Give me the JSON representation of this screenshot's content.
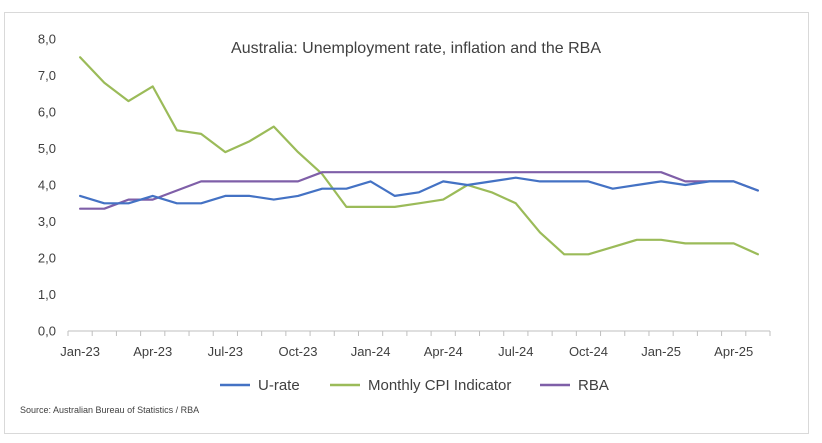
{
  "chart_data": {
    "type": "line",
    "title": "Australia: Unemployment rate, inflation and the RBA",
    "source": "Source: Australian Bureau of Statistics / RBA",
    "xlabel": "",
    "ylabel": "",
    "ylim": [
      0,
      8
    ],
    "y_ticks": [
      "0,0",
      "1,0",
      "2,0",
      "3,0",
      "4,0",
      "5,0",
      "6,0",
      "7,0",
      "8,0"
    ],
    "x_ticks": [
      {
        "label": "Jan-23",
        "index": 0
      },
      {
        "label": "Apr-23",
        "index": 3
      },
      {
        "label": "Jul-23",
        "index": 6
      },
      {
        "label": "Oct-23",
        "index": 9
      },
      {
        "label": "Jan-24",
        "index": 12
      },
      {
        "label": "Apr-24",
        "index": 15
      },
      {
        "label": "Jul-24",
        "index": 18
      },
      {
        "label": "Oct-24",
        "index": 21
      },
      {
        "label": "Jan-25",
        "index": 24
      },
      {
        "label": "Apr-25",
        "index": 27
      }
    ],
    "x_months": [
      "Jan-23",
      "Feb-23",
      "Mar-23",
      "Apr-23",
      "May-23",
      "Jun-23",
      "Jul-23",
      "Aug-23",
      "Sep-23",
      "Oct-23",
      "Nov-23",
      "Dec-23",
      "Jan-24",
      "Feb-24",
      "Mar-24",
      "Apr-24",
      "May-24",
      "Jun-24",
      "Jul-24",
      "Aug-24",
      "Sep-24",
      "Oct-24",
      "Nov-24",
      "Dec-24",
      "Jan-25",
      "Feb-25",
      "Mar-25",
      "Apr-25",
      "May-25"
    ],
    "grid": false,
    "legend_position": "bottom",
    "series": [
      {
        "name": "U-rate",
        "color": "#4472c4",
        "values": [
          3.7,
          3.5,
          3.5,
          3.7,
          3.5,
          3.5,
          3.7,
          3.7,
          3.6,
          3.7,
          3.9,
          3.9,
          4.1,
          3.7,
          3.8,
          4.1,
          4.0,
          4.1,
          4.2,
          4.1,
          4.1,
          4.1,
          3.9,
          4.0,
          4.1,
          4.0,
          4.1,
          4.1,
          3.85
        ]
      },
      {
        "name": "Monthly CPI Indicator",
        "color": "#9bbb59",
        "values": [
          7.5,
          6.8,
          6.3,
          6.7,
          5.5,
          5.4,
          4.9,
          5.2,
          5.6,
          4.9,
          4.3,
          3.4,
          3.4,
          3.4,
          3.5,
          3.6,
          4.0,
          3.8,
          3.5,
          2.7,
          2.1,
          2.1,
          2.3,
          2.5,
          2.5,
          2.4,
          2.4,
          2.4,
          2.1
        ]
      },
      {
        "name": "RBA",
        "color": "#7f5fa8",
        "values": [
          3.35,
          3.35,
          3.6,
          3.6,
          3.85,
          4.1,
          4.1,
          4.1,
          4.1,
          4.1,
          4.35,
          4.35,
          4.35,
          4.35,
          4.35,
          4.35,
          4.35,
          4.35,
          4.35,
          4.35,
          4.35,
          4.35,
          4.35,
          4.35,
          4.35,
          4.1,
          4.1,
          4.1,
          3.85
        ]
      }
    ]
  }
}
